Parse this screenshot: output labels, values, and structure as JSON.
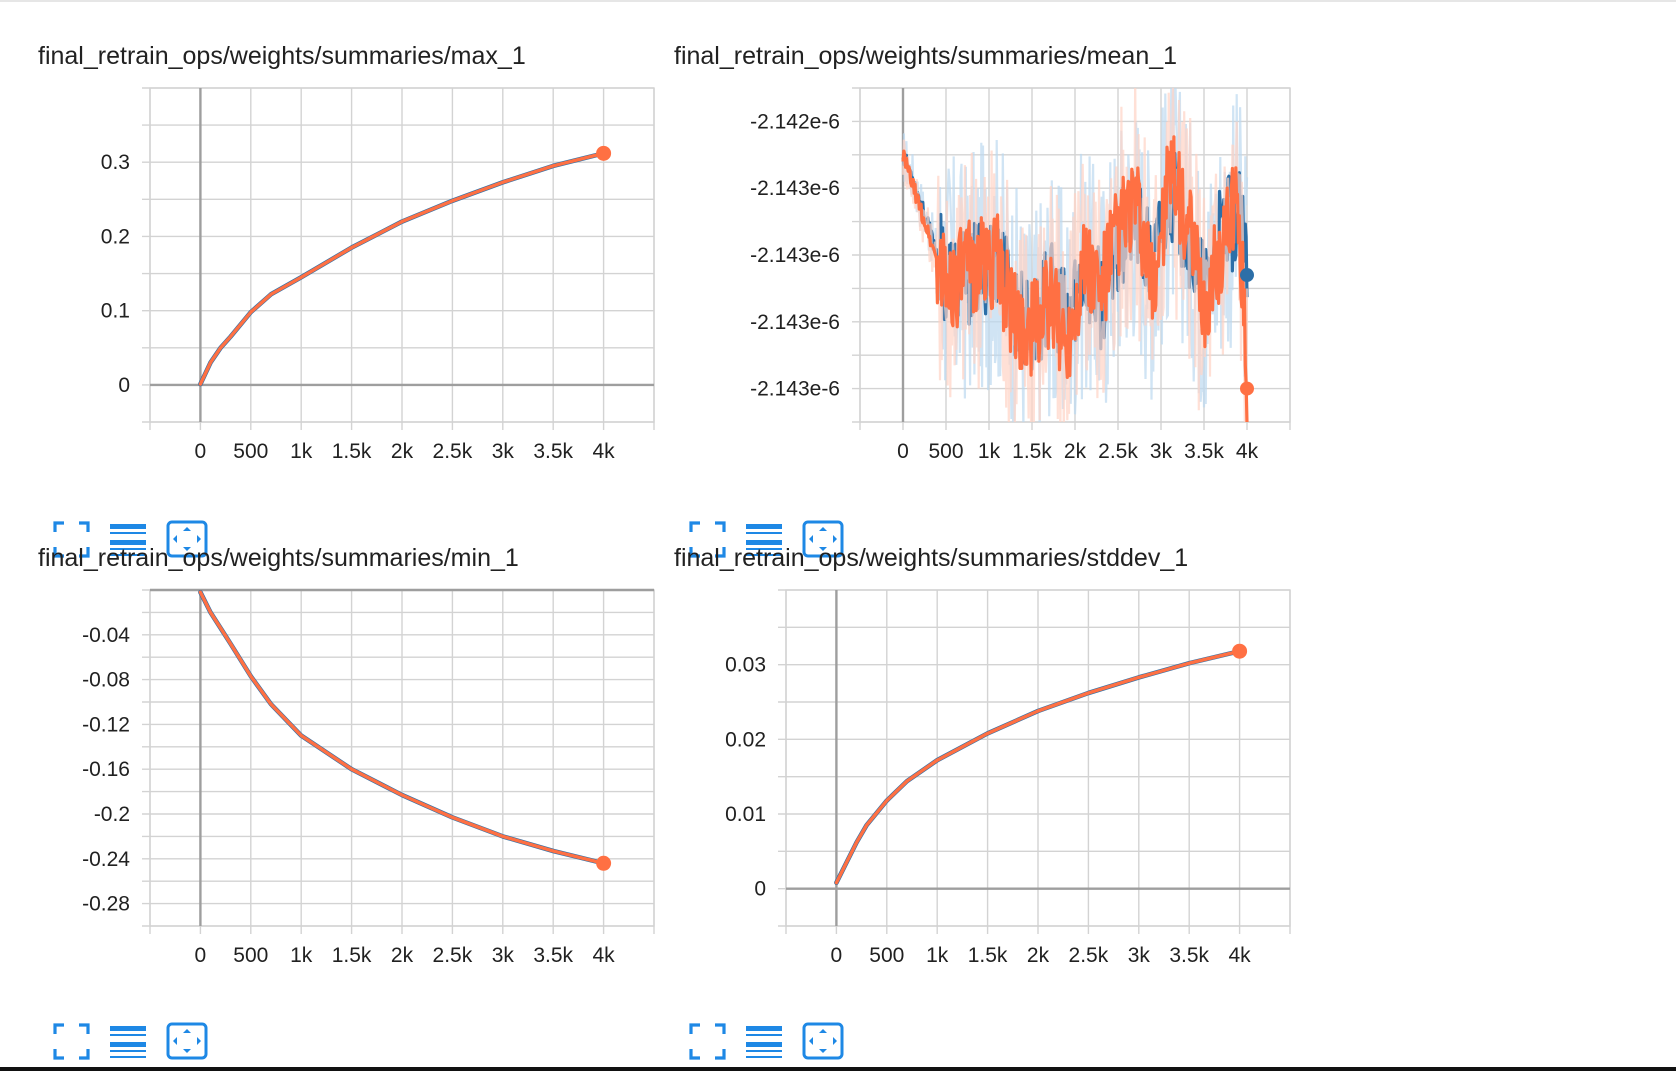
{
  "colors": {
    "orange": "#ff7043",
    "blue": "#2c6fa8",
    "grid": "#d3d3d3",
    "axis": "#9e9e9e",
    "icon": "#1e88e5"
  },
  "icons": [
    "fit-to-data-icon",
    "toggle-log-scale-icon",
    "expand-chart-icon"
  ],
  "cards": [
    {
      "title": "final_retrain_ops/weights/summaries/max_1",
      "chart_data": {
        "type": "line",
        "title": "final_retrain_ops/weights/summaries/max_1",
        "xlim": [
          -500,
          4500
        ],
        "ylim": [
          -0.05,
          0.4
        ],
        "x_ticks": [
          0,
          500,
          1000,
          1500,
          2000,
          2500,
          3000,
          3500,
          4000
        ],
        "x_tick_labels": [
          "0",
          "500",
          "1k",
          "1.5k",
          "2k",
          "2.5k",
          "3k",
          "3.5k",
          "4k"
        ],
        "y_ticks": [
          0,
          0.1,
          0.2,
          0.3
        ],
        "y_tick_labels": [
          "0",
          "0.1",
          "0.2",
          "0.3"
        ],
        "grid": true,
        "series": [
          {
            "color": "#2c6fa8",
            "x": [
              0,
              100,
              200,
              300,
              500,
              700,
              1000,
              1500,
              2000,
              2500,
              3000,
              3500,
              4000
            ],
            "y": [
              0.001,
              0.03,
              0.05,
              0.065,
              0.098,
              0.122,
              0.145,
              0.185,
              0.22,
              0.248,
              0.273,
              0.295,
              0.312
            ]
          },
          {
            "color": "#ff7043",
            "x": [
              0,
              100,
              200,
              300,
              500,
              700,
              1000,
              1500,
              2000,
              2500,
              3000,
              3500,
              4000
            ],
            "y": [
              0.001,
              0.03,
              0.05,
              0.065,
              0.098,
              0.122,
              0.145,
              0.185,
              0.22,
              0.248,
              0.273,
              0.295,
              0.312
            ]
          }
        ],
        "end_marker": {
          "x": 4000,
          "y": 0.312
        }
      }
    },
    {
      "title": "final_retrain_ops/weights/summaries/mean_1",
      "chart_data": {
        "type": "line",
        "title": "final_retrain_ops/weights/summaries/mean_1",
        "xlim": [
          -500,
          4500
        ],
        "ylim": [
          -0.5,
          4.5
        ],
        "x_ticks": [
          0,
          500,
          1000,
          1500,
          2000,
          2500,
          3000,
          3500,
          4000
        ],
        "x_tick_labels": [
          "0",
          "500",
          "1k",
          "1.5k",
          "2k",
          "2.5k",
          "3k",
          "3.5k",
          "4k"
        ],
        "y_ticks": [
          0,
          1,
          2,
          3,
          4
        ],
        "y_tick_labels": [
          "-2.143e-6",
          "-2.143e-6",
          "-2.143e-6",
          "-2.143e-6",
          "-2.142e-6"
        ],
        "grid": true,
        "noisy": true,
        "series": [
          {
            "color": "#2c6fa8",
            "x": [
              0,
              100,
              200,
              300,
              400,
              500,
              700,
              900,
              1100,
              1300,
              1500,
              1700,
              1900,
              2100,
              2300,
              2500,
              2700,
              2900,
              3100,
              3300,
              3500,
              3700,
              3900,
              4000
            ],
            "y": [
              3.5,
              3.2,
              2.8,
              2.4,
              2.0,
              1.7,
              1.6,
              1.8,
              2.0,
              1.2,
              0.8,
              1.5,
              1.0,
              1.8,
              1.3,
              2.2,
              2.6,
              1.7,
              3.0,
              2.4,
              1.4,
              2.3,
              2.6,
              1.7
            ]
          },
          {
            "color": "#ff7043",
            "x": [
              0,
              100,
              200,
              300,
              400,
              500,
              700,
              900,
              1100,
              1300,
              1500,
              1700,
              1900,
              2100,
              2300,
              2500,
              2700,
              2900,
              3100,
              3300,
              3500,
              3700,
              3900,
              4000
            ],
            "y": [
              3.5,
              3.1,
              2.7,
              2.3,
              1.9,
              1.6,
              1.7,
              1.9,
              1.9,
              1.0,
              0.9,
              1.3,
              0.7,
              1.9,
              1.5,
              2.4,
              2.8,
              1.5,
              3.2,
              2.5,
              1.2,
              2.1,
              2.9,
              0.0
            ]
          }
        ],
        "end_markers": [
          {
            "color": "#2c6fa8",
            "x": 4000,
            "y": 1.7
          },
          {
            "color": "#ff7043",
            "x": 4000,
            "y": 0.0
          }
        ]
      }
    },
    {
      "title": "final_retrain_ops/weights/summaries/min_1",
      "chart_data": {
        "type": "line",
        "title": "final_retrain_ops/weights/summaries/min_1",
        "xlim": [
          -500,
          4500
        ],
        "ylim": [
          -0.3,
          0.0
        ],
        "x_ticks": [
          0,
          500,
          1000,
          1500,
          2000,
          2500,
          3000,
          3500,
          4000
        ],
        "x_tick_labels": [
          "0",
          "500",
          "1k",
          "1.5k",
          "2k",
          "2.5k",
          "3k",
          "3.5k",
          "4k"
        ],
        "y_ticks": [
          -0.04,
          -0.08,
          -0.12,
          -0.16,
          -0.2,
          -0.24,
          -0.28
        ],
        "y_tick_labels": [
          "-0.04",
          "-0.08",
          "-0.12",
          "-0.16",
          "-0.2",
          "-0.24",
          "-0.28"
        ],
        "grid": true,
        "series": [
          {
            "color": "#2c6fa8",
            "x": [
              0,
              100,
              200,
              300,
              500,
              700,
              1000,
              1500,
              2000,
              2500,
              3000,
              3500,
              4000
            ],
            "y": [
              -0.002,
              -0.02,
              -0.034,
              -0.048,
              -0.077,
              -0.102,
              -0.13,
              -0.16,
              -0.183,
              -0.203,
              -0.22,
              -0.233,
              -0.244
            ]
          },
          {
            "color": "#ff7043",
            "x": [
              0,
              100,
              200,
              300,
              500,
              700,
              1000,
              1500,
              2000,
              2500,
              3000,
              3500,
              4000
            ],
            "y": [
              -0.002,
              -0.02,
              -0.034,
              -0.048,
              -0.077,
              -0.102,
              -0.13,
              -0.16,
              -0.183,
              -0.203,
              -0.22,
              -0.233,
              -0.244
            ]
          }
        ],
        "end_marker": {
          "x": 4000,
          "y": -0.244
        }
      }
    },
    {
      "title": "final_retrain_ops/weights/summaries/stddev_1",
      "chart_data": {
        "type": "line",
        "title": "final_retrain_ops/weights/summaries/stddev_1",
        "xlim": [
          -500,
          4500
        ],
        "ylim": [
          -0.005,
          0.04
        ],
        "x_ticks": [
          0,
          500,
          1000,
          1500,
          2000,
          2500,
          3000,
          3500,
          4000
        ],
        "x_tick_labels": [
          "0",
          "500",
          "1k",
          "1.5k",
          "2k",
          "2.5k",
          "3k",
          "3.5k",
          "4k"
        ],
        "y_ticks": [
          0,
          0.01,
          0.02,
          0.03
        ],
        "y_tick_labels": [
          "0",
          "0.01",
          "0.02",
          "0.03"
        ],
        "grid": true,
        "series": [
          {
            "color": "#2c6fa8",
            "x": [
              0,
              100,
              200,
              300,
              500,
              700,
              1000,
              1500,
              2000,
              2500,
              3000,
              3500,
              4000
            ],
            "y": [
              0.0008,
              0.0035,
              0.0062,
              0.0085,
              0.0118,
              0.0144,
              0.0172,
              0.0208,
              0.0238,
              0.0262,
              0.0283,
              0.0302,
              0.0318
            ]
          },
          {
            "color": "#ff7043",
            "x": [
              0,
              100,
              200,
              300,
              500,
              700,
              1000,
              1500,
              2000,
              2500,
              3000,
              3500,
              4000
            ],
            "y": [
              0.0008,
              0.0035,
              0.0062,
              0.0085,
              0.0118,
              0.0144,
              0.0172,
              0.0208,
              0.0238,
              0.0262,
              0.0283,
              0.0302,
              0.0318
            ]
          }
        ],
        "end_marker": {
          "x": 4000,
          "y": 0.0318
        }
      }
    }
  ]
}
